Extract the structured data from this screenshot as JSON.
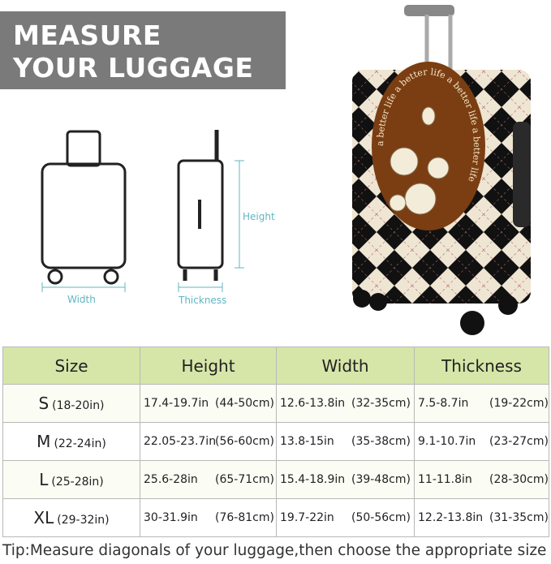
{
  "banner": {
    "line1": "MEASURE",
    "line2": "YOUR LUGGAGE"
  },
  "diagram": {
    "width_label": "Width",
    "height_label": "Height",
    "thickness_label": "Thickness"
  },
  "cover": {
    "circle_text": "a better life a better life a better life a better life"
  },
  "colors": {
    "banner": "#7a7a7a",
    "table_header": "#d6e6a8",
    "measure_lines": "#5fb7c2",
    "cover_brown": "#7a3e12"
  },
  "table": {
    "headers": [
      "Size",
      "Height",
      "Width",
      "Thickness"
    ],
    "rows": [
      {
        "size": "S",
        "range": "(18-20in)",
        "height_in": "17.4-19.7in",
        "height_cm": "(44-50cm)",
        "width_in": "12.6-13.8in",
        "width_cm": "(32-35cm)",
        "thick_in": "7.5-8.7in",
        "thick_cm": "(19-22cm)"
      },
      {
        "size": "M",
        "range": "(22-24in)",
        "height_in": "22.05-23.7in",
        "height_cm": "(56-60cm)",
        "width_in": "13.8-15in",
        "width_cm": "(35-38cm)",
        "thick_in": "9.1-10.7in",
        "thick_cm": "(23-27cm)"
      },
      {
        "size": "L",
        "range": "(25-28in)",
        "height_in": "25.6-28in",
        "height_cm": "(65-71cm)",
        "width_in": "15.4-18.9in",
        "width_cm": "(39-48cm)",
        "thick_in": "11-11.8in",
        "thick_cm": "(28-30cm)"
      },
      {
        "size": "XL",
        "range": "(29-32in)",
        "height_in": "30-31.9in",
        "height_cm": "(76-81cm)",
        "width_in": "19.7-22in",
        "width_cm": "(50-56cm)",
        "thick_in": "12.2-13.8in",
        "thick_cm": "(31-35cm)"
      }
    ]
  },
  "tip": "Tip:Measure diagonals of your luggage,then choose the appropriate size"
}
